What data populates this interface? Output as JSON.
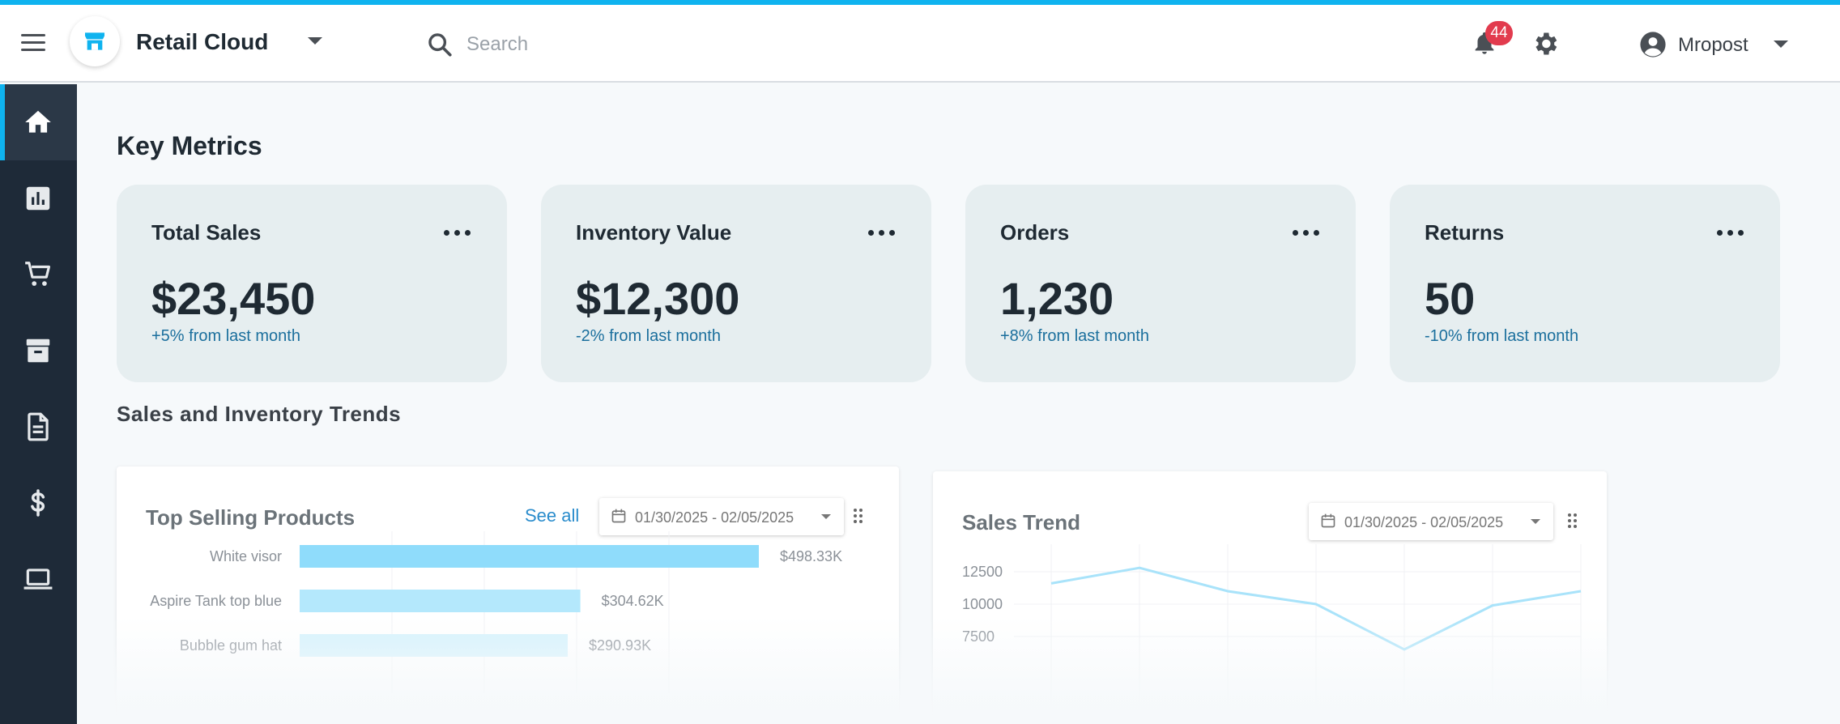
{
  "header": {
    "app_title": "Retail Cloud",
    "search_placeholder": "Search",
    "notification_count": "44",
    "user_name": "Mropost"
  },
  "sidebar": {
    "items": [
      {
        "name": "home",
        "icon": "home-icon",
        "active": true
      },
      {
        "name": "reports",
        "icon": "bar-chart-icon",
        "active": false
      },
      {
        "name": "cart",
        "icon": "cart-icon",
        "active": false
      },
      {
        "name": "inventory",
        "icon": "archive-icon",
        "active": false
      },
      {
        "name": "documents",
        "icon": "document-icon",
        "active": false
      },
      {
        "name": "finance",
        "icon": "dollar-icon",
        "active": false
      },
      {
        "name": "devices",
        "icon": "laptop-icon",
        "active": false
      }
    ]
  },
  "main": {
    "section_title": "Key Metrics",
    "cards": [
      {
        "title": "Total Sales",
        "value": "$23,450",
        "change": "+5% from last month"
      },
      {
        "title": "Inventory Value",
        "value": "$12,300",
        "change": "-2% from last month"
      },
      {
        "title": "Orders",
        "value": "1,230",
        "change": "+8% from last month"
      },
      {
        "title": "Returns",
        "value": "50",
        "change": "-10% from last month"
      }
    ],
    "trends_title": "Sales and Inventory Trends"
  },
  "panels": {
    "top_products": {
      "title": "Top Selling Products",
      "see_all": "See all",
      "date_range": "01/30/2025 - 02/05/2025"
    },
    "sales_trend": {
      "title": "Sales Trend",
      "date_range": "01/30/2025 - 02/05/2025"
    }
  },
  "colors": {
    "accent": "#0fb3ef",
    "sidebar": "#1e2a38",
    "badge": "#e23b4e",
    "change_text": "#1b6f9d"
  },
  "chart_data": [
    {
      "type": "bar",
      "orientation": "horizontal",
      "categories": [
        "White visor",
        "Aspire Tank top blue",
        "Bubble gum hat"
      ],
      "values": [
        498.33,
        304.62,
        290.93
      ],
      "value_labels": [
        "$498.33K",
        "$304.62K",
        "$290.93K"
      ],
      "title": "Top Selling Products",
      "xlim": [
        0,
        600
      ]
    },
    {
      "type": "line",
      "title": "Sales Trend",
      "y_ticks": [
        "12500",
        "10000",
        "7500"
      ],
      "series": [
        {
          "values": [
            11600,
            12800,
            11000,
            10000,
            6500,
            9900,
            11000
          ]
        }
      ],
      "ylim": [
        6500,
        14000
      ],
      "grid": true
    }
  ]
}
